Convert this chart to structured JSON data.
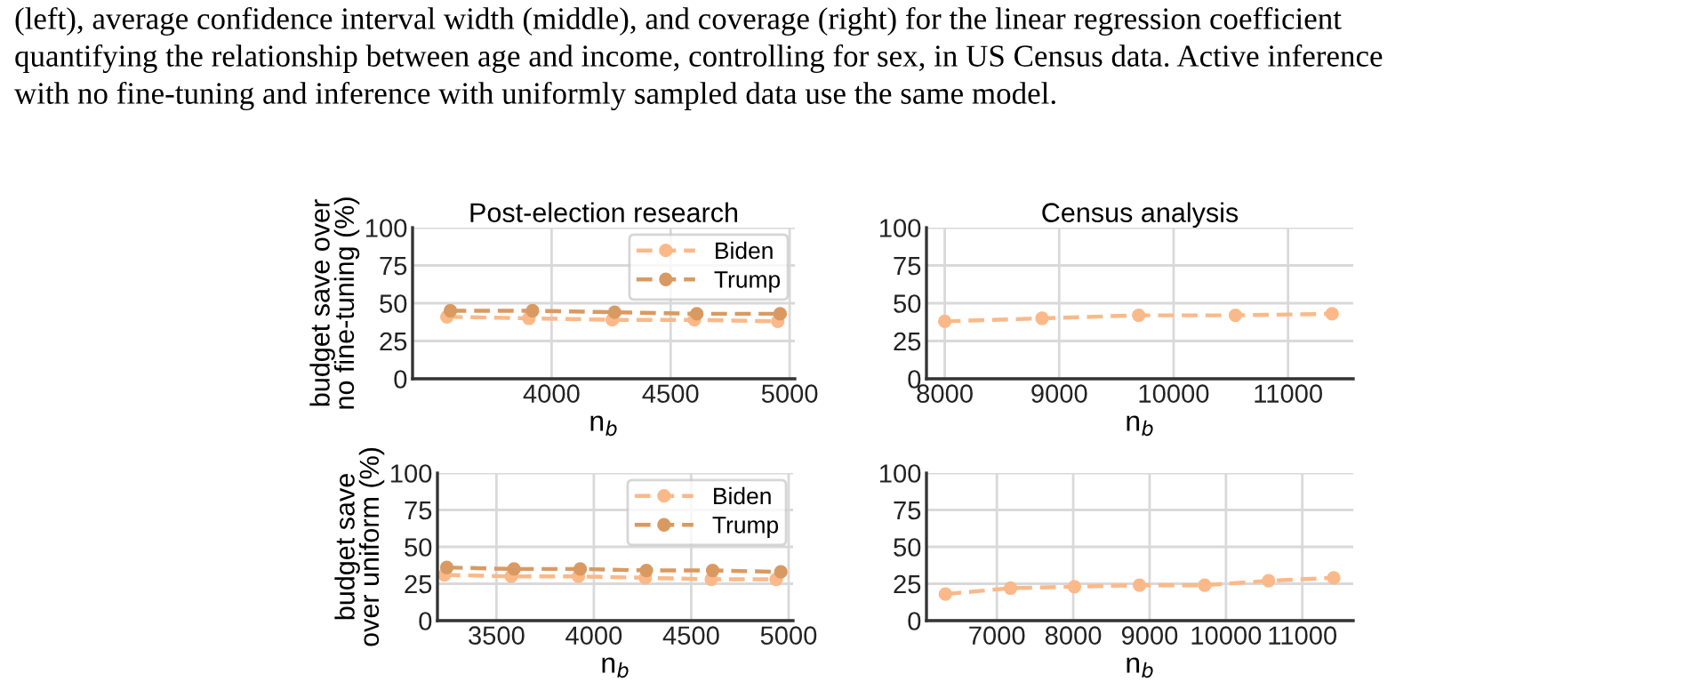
{
  "chart_data": [
    {
      "type": "line",
      "title": "Post-election research",
      "xlabel": "n$_{b}$",
      "ylabel": "budget save over\nno fine-tuning (%)",
      "annotations": [
        "(left), average confidence interval width (middle), and coverage (right) for the linear regression coefficient",
        "quantifying the relationship between age and income, controlling for sex, in US Census data. Active inference",
        "with no fine-tuning and inference with uniformly sampled data use the same model."
      ],
      "series": [
        {
          "name": "Biden",
          "color": "#fbb98a",
          "x": [
            3560,
            3905,
            4255,
            4600,
            4950
          ],
          "values": [
            41,
            40,
            39,
            39,
            38
          ]
        },
        {
          "name": "Trump",
          "color": "#d99a62",
          "x": [
            3575,
            3920,
            4265,
            4610,
            4960
          ],
          "values": [
            45,
            45,
            44,
            43,
            43
          ]
        }
      ],
      "xlim": [
        3416,
        5022
      ],
      "xticks": [
        4000,
        4500,
        5000
      ],
      "ylim": [
        0,
        100
      ],
      "yticks": [
        0,
        25,
        50,
        75,
        100
      ],
      "grid": true,
      "legend": "top right",
      "marker": "circle",
      "line_style": "dashed"
    },
    {
      "type": "line",
      "title": "Census analysis",
      "xlabel": "n$_{b}$",
      "series": [
        {
          "color": "#fbb98a",
          "x": [
            8000,
            8850,
            9695,
            10540,
            11385
          ],
          "values": [
            38,
            40,
            42,
            42,
            43
          ]
        }
      ],
      "xlim": [
        7840,
        11570
      ],
      "xticks": [
        8000,
        9000,
        10000,
        11000
      ],
      "ylim": [
        0,
        100
      ],
      "yticks": [
        0,
        25,
        50,
        75,
        100
      ],
      "grid": true,
      "marker": "circle",
      "line_style": "dashed"
    },
    {
      "type": "line",
      "xlabel": "n$_{b}$",
      "ylabel": "budget save\nover uniform (%)",
      "series": [
        {
          "name": "Biden",
          "color": "#fbb98a",
          "x": [
            3233,
            3576,
            3921,
            4264,
            4603,
            4936
          ],
          "values": [
            31,
            30,
            30,
            29,
            28,
            28
          ]
        },
        {
          "name": "Trump",
          "color": "#d99a62",
          "x": [
            3245,
            3590,
            3930,
            4270,
            4610,
            4960
          ],
          "values": [
            36,
            35,
            35,
            34,
            34,
            33
          ]
        }
      ],
      "xlim": [
        3197,
        5023
      ],
      "xticks": [
        3500,
        4000,
        4500,
        5000
      ],
      "ylim": [
        0,
        100
      ],
      "yticks": [
        0,
        25,
        50,
        75,
        100
      ],
      "grid": true,
      "legend": "top right",
      "marker": "circle",
      "line_style": "dashed"
    },
    {
      "type": "line",
      "xlabel": "n$_{b}$",
      "series": [
        {
          "color": "#fbb98a",
          "x": [
            6326,
            7178,
            8016,
            8868,
            9721,
            10558,
            11411
          ],
          "values": [
            18,
            22,
            23,
            24,
            24,
            27,
            29
          ]
        }
      ],
      "xlim": [
        6078,
        11667
      ],
      "xticks": [
        7000,
        8000,
        9000,
        10000,
        11000
      ],
      "ylim": [
        0,
        100
      ],
      "yticks": [
        0,
        25,
        50,
        75,
        100
      ],
      "grid": true,
      "marker": "circle",
      "line_style": "dashed"
    }
  ]
}
